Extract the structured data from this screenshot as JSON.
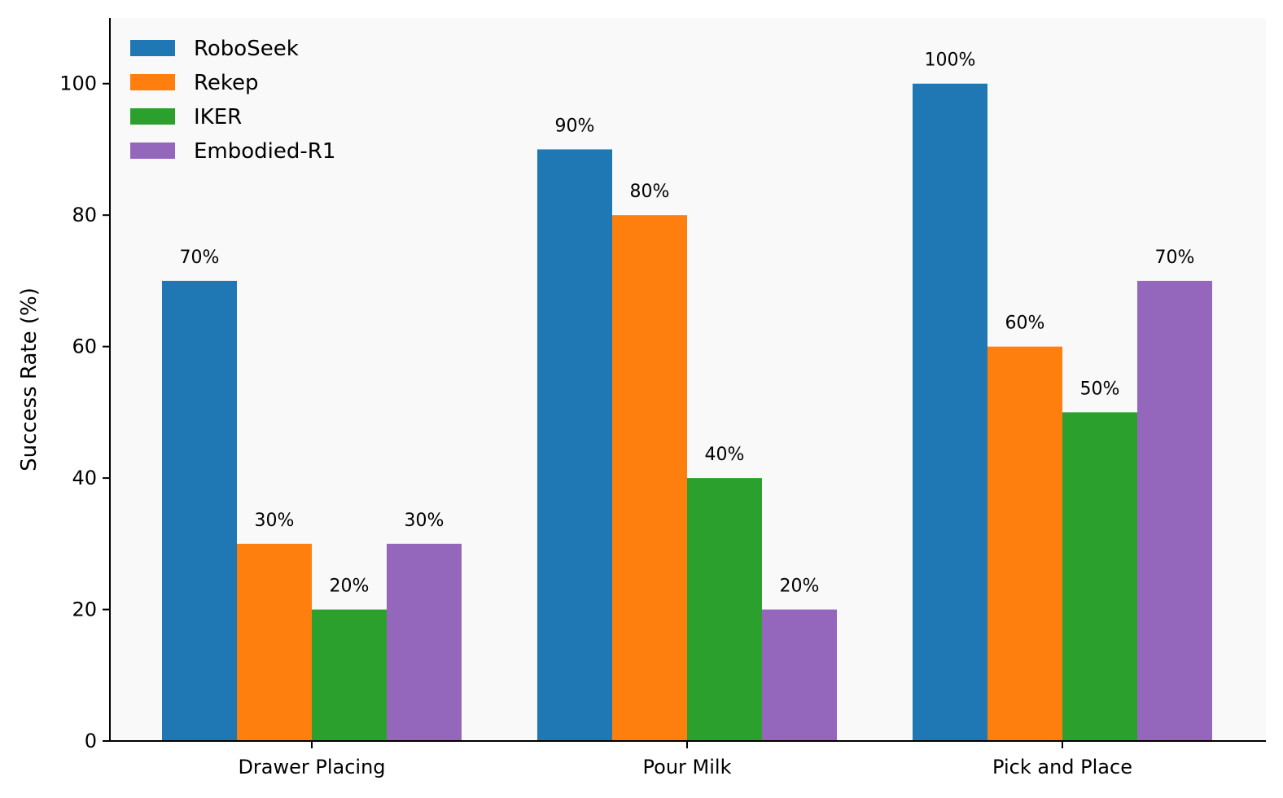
{
  "chart_data": {
    "type": "bar",
    "title": "",
    "xlabel": "",
    "ylabel": "Success Rate (%)",
    "ylim": [
      0,
      110
    ],
    "yticks": [
      0,
      20,
      40,
      60,
      80,
      100
    ],
    "grid": false,
    "legend_position": "top-left",
    "categories": [
      "Drawer Placing",
      "Pour Milk",
      "Pick and Place"
    ],
    "series": [
      {
        "name": "RoboSeek",
        "color": "#1f77b4",
        "values": [
          70,
          90,
          100
        ],
        "labels": [
          "70%",
          "90%",
          "100%"
        ]
      },
      {
        "name": "Rekep",
        "color": "#ff7f0e",
        "values": [
          30,
          80,
          60
        ],
        "labels": [
          "30%",
          "80%",
          "60%"
        ]
      },
      {
        "name": "IKER",
        "color": "#2ca02c",
        "values": [
          20,
          40,
          50
        ],
        "labels": [
          "20%",
          "40%",
          "50%"
        ]
      },
      {
        "name": "Embodied-R1",
        "color": "#9467bd",
        "values": [
          30,
          20,
          70
        ],
        "labels": [
          "30%",
          "20%",
          "70%"
        ]
      }
    ]
  }
}
